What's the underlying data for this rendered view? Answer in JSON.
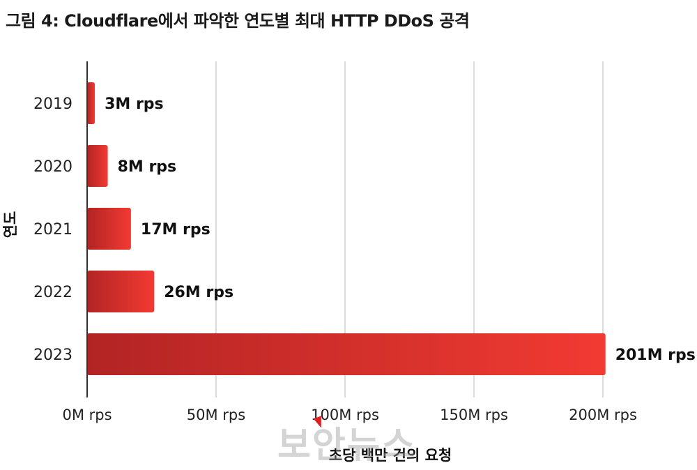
{
  "chart_data": {
    "type": "bar",
    "orientation": "horizontal",
    "title": "그림 4: Cloudflare에서 파악한 연도별 최대 HTTP DDoS 공격",
    "xlabel": "초당 백만 건의 요청",
    "ylabel": "연도",
    "categories": [
      "2019",
      "2020",
      "2021",
      "2022",
      "2023"
    ],
    "values": [
      3,
      8,
      17,
      26,
      201
    ],
    "value_labels": [
      "3M rps",
      "8M rps",
      "17M rps",
      "26M rps",
      "201M rps"
    ],
    "xlim": [
      0,
      200
    ],
    "xticks": [
      0,
      50,
      100,
      150,
      200
    ],
    "xtick_labels": [
      "0M rps",
      "50M rps",
      "100M rps",
      "150M rps",
      "200M rps"
    ],
    "grid": "vertical",
    "legend": "none",
    "colors": {
      "bar_start": "#b22424",
      "bar_end": "#f23a32",
      "grid": "#d0d0d0",
      "axis": "#333333"
    }
  },
  "watermark": "보안뉴스"
}
